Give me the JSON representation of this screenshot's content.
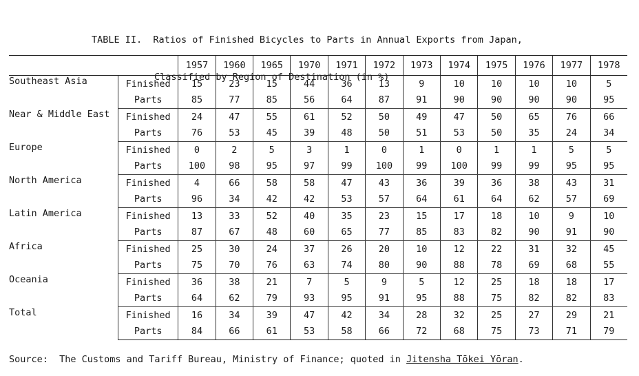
{
  "title": {
    "line1": "TABLE II.  Ratios of Finished Bicycles to Parts in Annual Exports from Japan,",
    "line2": "Classified by Region of Destination (in %)"
  },
  "years": [
    "1957",
    "1960",
    "1965",
    "1970",
    "1971",
    "1972",
    "1973",
    "1974",
    "1975",
    "1976",
    "1977",
    "1978"
  ],
  "labels": {
    "finished": "Finished",
    "parts": "Parts"
  },
  "regions": [
    {
      "name": "Southeast Asia",
      "finished": [
        "15",
        "23",
        "15",
        "44",
        "36",
        "13",
        "9",
        "10",
        "10",
        "10",
        "10",
        "5"
      ],
      "parts": [
        "85",
        "77",
        "85",
        "56",
        "64",
        "87",
        "91",
        "90",
        "90",
        "90",
        "90",
        "95"
      ]
    },
    {
      "name": "Near & Middle East",
      "finished": [
        "24",
        "47",
        "55",
        "61",
        "52",
        "50",
        "49",
        "47",
        "50",
        "65",
        "76",
        "66"
      ],
      "parts": [
        "76",
        "53",
        "45",
        "39",
        "48",
        "50",
        "51",
        "53",
        "50",
        "35",
        "24",
        "34"
      ]
    },
    {
      "name": "Europe",
      "finished": [
        "0",
        "2",
        "5",
        "3",
        "1",
        "0",
        "1",
        "0",
        "1",
        "1",
        "5",
        "5"
      ],
      "parts": [
        "100",
        "98",
        "95",
        "97",
        "99",
        "100",
        "99",
        "100",
        "99",
        "99",
        "95",
        "95"
      ]
    },
    {
      "name": "North America",
      "finished": [
        "4",
        "66",
        "58",
        "58",
        "47",
        "43",
        "36",
        "39",
        "36",
        "38",
        "43",
        "31"
      ],
      "parts": [
        "96",
        "34",
        "42",
        "42",
        "53",
        "57",
        "64",
        "61",
        "64",
        "62",
        "57",
        "69"
      ]
    },
    {
      "name": "Latin America",
      "finished": [
        "13",
        "33",
        "52",
        "40",
        "35",
        "23",
        "15",
        "17",
        "18",
        "10",
        "9",
        "10"
      ],
      "parts": [
        "87",
        "67",
        "48",
        "60",
        "65",
        "77",
        "85",
        "83",
        "82",
        "90",
        "91",
        "90"
      ]
    },
    {
      "name": "Africa",
      "finished": [
        "25",
        "30",
        "24",
        "37",
        "26",
        "20",
        "10",
        "12",
        "22",
        "31",
        "32",
        "45"
      ],
      "parts": [
        "75",
        "70",
        "76",
        "63",
        "74",
        "80",
        "90",
        "88",
        "78",
        "69",
        "68",
        "55"
      ]
    },
    {
      "name": "Oceania",
      "finished": [
        "36",
        "38",
        "21",
        "7",
        "5",
        "9",
        "5",
        "12",
        "25",
        "18",
        "18",
        "17"
      ],
      "parts": [
        "64",
        "62",
        "79",
        "93",
        "95",
        "91",
        "95",
        "88",
        "75",
        "82",
        "82",
        "83"
      ]
    },
    {
      "name": "Total",
      "finished": [
        "16",
        "34",
        "39",
        "47",
        "42",
        "34",
        "28",
        "32",
        "25",
        "27",
        "29",
        "21"
      ],
      "parts": [
        "84",
        "66",
        "61",
        "53",
        "58",
        "66",
        "72",
        "68",
        "75",
        "73",
        "71",
        "79"
      ]
    }
  ],
  "source": {
    "prefix": "Source:  The Customs and Tariff Bureau, Ministry of Finance; quoted in ",
    "reference": "Jitensha Tōkei Yōran",
    "suffix": "."
  }
}
